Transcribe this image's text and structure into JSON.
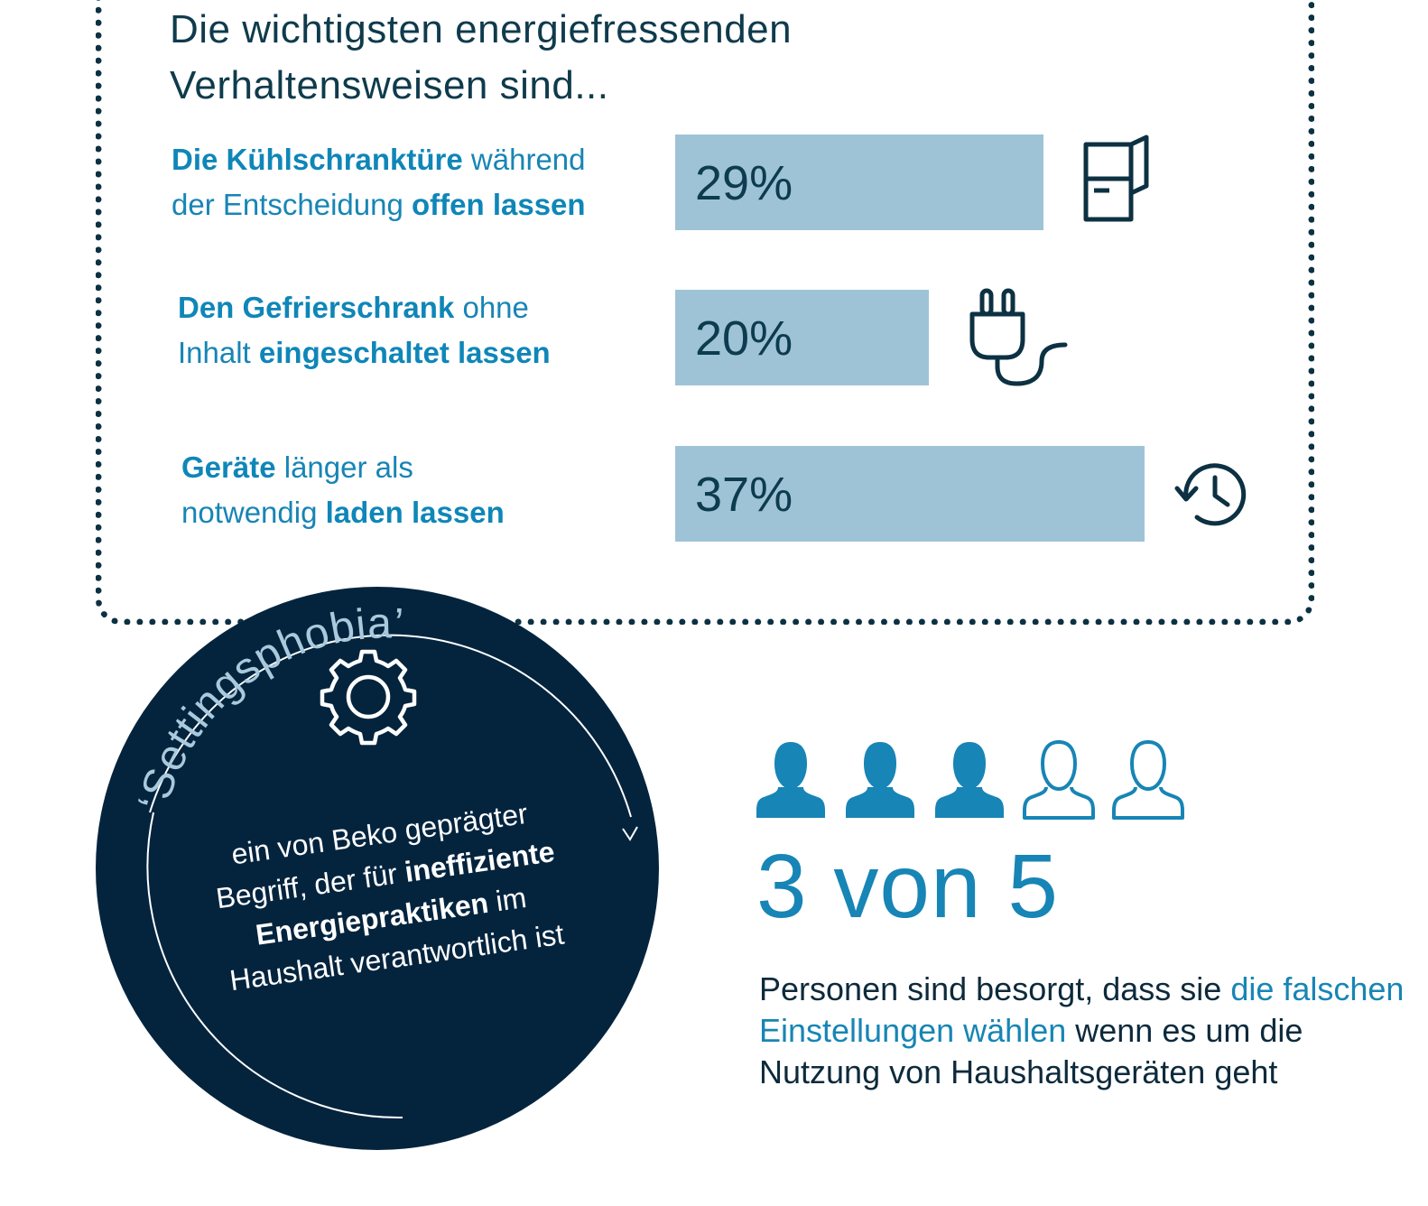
{
  "headline": {
    "line1": "Die wichtigsten energiefressenden",
    "line2": "Verhaltensweisen sind..."
  },
  "behaviors": [
    {
      "b1": "Die Kühlschranktüre",
      "t1": " während",
      "t2": "der Entscheidung ",
      "b2": "offen lassen",
      "icon": "fridge-icon"
    },
    {
      "b1": "Den Gefrierschrank",
      "t1": " ohne",
      "t2": "Inhalt ",
      "b2": "eingeschaltet lassen",
      "icon": "plug-icon"
    },
    {
      "b1": "Geräte",
      "t1": " länger als",
      "t2": "notwendig ",
      "b2": "laden lassen",
      "icon": "clock-history-icon"
    }
  ],
  "chart_data": {
    "type": "bar",
    "orientation": "horizontal",
    "categories": [
      "Die Kühlschranktüre während der Entscheidung offen lassen",
      "Den Gefrierschrank ohne Inhalt eingeschaltet lassen",
      "Geräte länger als notwendig laden lassen"
    ],
    "values": [
      29,
      20,
      37
    ],
    "value_labels": [
      "29%",
      "20%",
      "37%"
    ],
    "unit": "%",
    "xlim": [
      0,
      37
    ],
    "bar_color": "#9fc3d6",
    "label_color": "#0d3b4f"
  },
  "bubble": {
    "title": "‘Settingsphobia’",
    "line1": "ein von Beko geprägter",
    "line2a": "Begriff, der für ",
    "line2b": "ineffiziente",
    "line3a": "Energiepraktiken",
    "line3b": " im",
    "line4": "Haushalt verantwortlich ist",
    "icon": "gear-icon",
    "background": "#04243e"
  },
  "stat": {
    "filled": 3,
    "total": 5,
    "big_text": "3 von 5",
    "text_a": "Personen sind besorgt, dass sie ",
    "text_hl": "die falschen Einstellungen wählen",
    "text_b": " wenn es um die Nutzung von Haushaltsgeräten geht",
    "accent": "#1785b5"
  }
}
